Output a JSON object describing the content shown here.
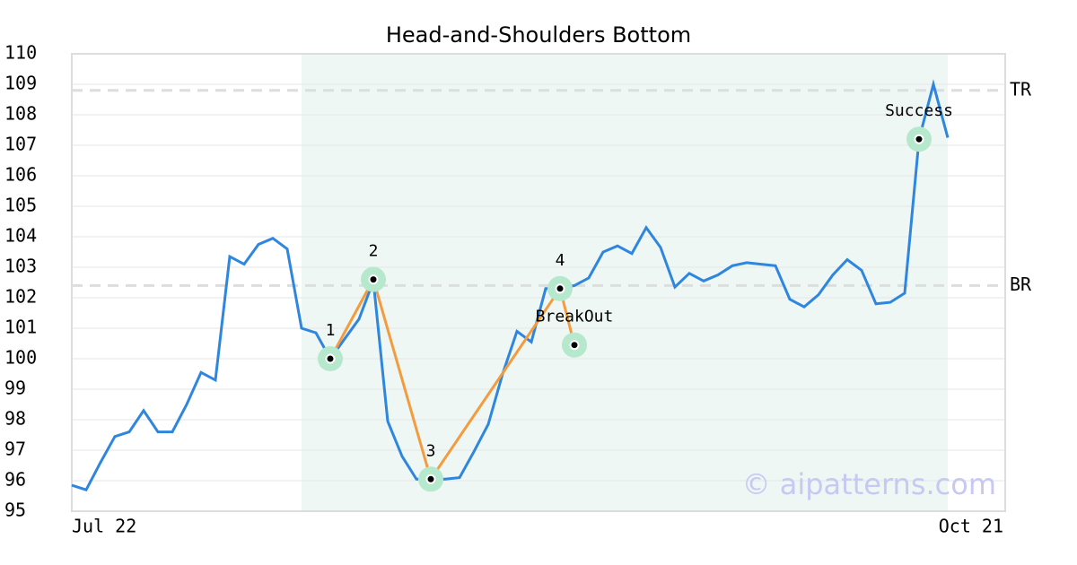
{
  "chart_data": {
    "type": "line",
    "title": "Head-and-Shoulders Bottom",
    "categories": [
      "Jul 22",
      null,
      null,
      null,
      null,
      null,
      null,
      null,
      null,
      null,
      null,
      null,
      null,
      null,
      null,
      null,
      null,
      null,
      null,
      null,
      null,
      null,
      null,
      null,
      null,
      null,
      null,
      null,
      null,
      null,
      null,
      null,
      null,
      null,
      null,
      null,
      null,
      null,
      null,
      null,
      null,
      null,
      null,
      null,
      null,
      null,
      null,
      null,
      null,
      null,
      null,
      null,
      null,
      null,
      null,
      null,
      null,
      null,
      null,
      null,
      null,
      null,
      null,
      null,
      null,
      "Oct 21"
    ],
    "series": [
      {
        "color": "#2e86de",
        "values": [
          95.85,
          95.7,
          96.6,
          97.45,
          97.6,
          98.3,
          97.6,
          97.6,
          98.5,
          99.55,
          99.3,
          103.35,
          103.1,
          103.75,
          103.95,
          103.6,
          101.0,
          100.85,
          100.0,
          100.65,
          101.3,
          102.55,
          97.95,
          96.8,
          96.05,
          96.05,
          96.05,
          96.1,
          96.95,
          97.85,
          99.5,
          100.9,
          100.55,
          102.3,
          102.3,
          102.4,
          102.65,
          103.5,
          103.7,
          103.45,
          104.3,
          103.65,
          102.35,
          102.8,
          102.55,
          102.75,
          103.05,
          103.15,
          103.1,
          103.05,
          101.95,
          101.7,
          102.1,
          102.75,
          103.25,
          102.9,
          101.8,
          101.85,
          102.15,
          107.2,
          109.0,
          107.25,
          null,
          null,
          null,
          null
        ]
      }
    ],
    "pattern_color": "#f39c3f",
    "marker_color": "#b5e8cc",
    "pattern_points": [
      {
        "label": "1",
        "x": 18,
        "value": 100.0
      },
      {
        "label": "2",
        "x": 21,
        "value": 102.6
      },
      {
        "label": "3",
        "x": 25,
        "value": 96.05
      },
      {
        "label": "4",
        "x": 34,
        "value": 102.3
      },
      {
        "label": "BreakOut",
        "x": 35,
        "value": 100.45
      }
    ],
    "success_point": {
      "label": "Success",
      "x": 59,
      "value": 107.2
    },
    "levels": [
      {
        "name": "TR",
        "value": 108.8
      },
      {
        "name": "BR",
        "value": 102.4
      }
    ],
    "shade_range": [
      16,
      61
    ],
    "shade_color": "#eef7f3",
    "ylim": [
      95,
      110
    ],
    "yticks": [
      95,
      96,
      97,
      98,
      99,
      100,
      101,
      102,
      103,
      104,
      105,
      106,
      107,
      108,
      109,
      110
    ],
    "grid": true,
    "watermark": "© aipatterns.com"
  }
}
